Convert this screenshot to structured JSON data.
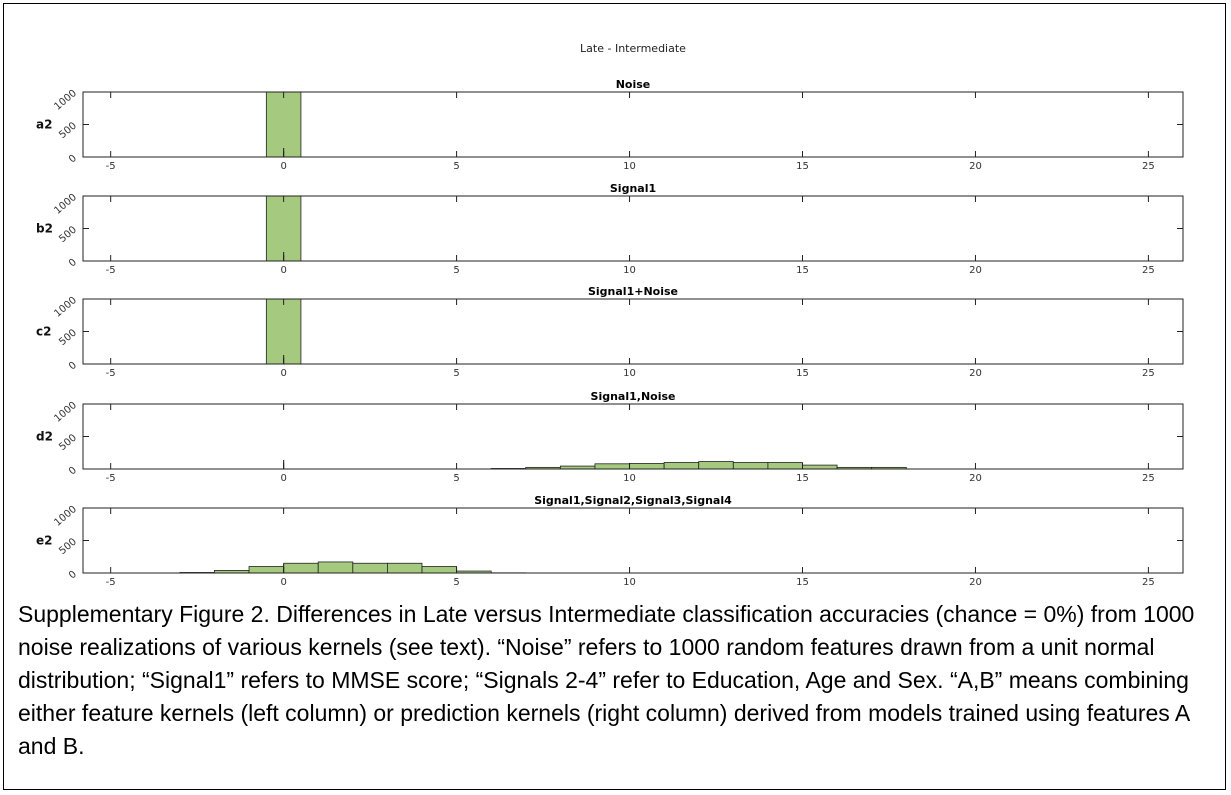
{
  "caption": "Supplementary Figure 2. Differences in Late versus Intermediate classification accuracies (chance = 0%) from 1000 noise realizations of various kernels (see text). “Noise” refers to 1000 random features drawn from a unit normal distribution; “Signal1” refers to MMSE score; “Signals 2-4” refer to Education, Age and Sex. “A,B” means combining either feature kernels (left column) or prediction kernels (right column) derived from models trained using features A and B.",
  "chart_data": {
    "type": "bar",
    "suptitle": "Late - Intermediate",
    "bar_color": "#a5c97f",
    "xlim": [
      -5.8,
      26
    ],
    "ylim": [
      0,
      1000
    ],
    "xticks": [
      -5,
      0,
      5,
      10,
      15,
      20,
      25
    ],
    "xtick_labels": [
      "-5",
      "0",
      "5",
      "10",
      "15",
      "20",
      "25"
    ],
    "yticks": [
      0,
      500,
      1000
    ],
    "ytick_labels": [
      "0",
      "500",
      "1000"
    ],
    "bin_width": 1,
    "panels": [
      {
        "label": "a2",
        "title": "Noise",
        "bin_centers": [
          0
        ],
        "counts": [
          1000
        ]
      },
      {
        "label": "b2",
        "title": "Signal1",
        "bin_centers": [
          0
        ],
        "counts": [
          1000
        ]
      },
      {
        "label": "c2",
        "title": "Signal1+Noise",
        "bin_centers": [
          0
        ],
        "counts": [
          1000
        ]
      },
      {
        "label": "d2",
        "title": "Signal1,Noise",
        "bin_centers": [
          6.5,
          7.5,
          8.5,
          9.5,
          10.5,
          11.5,
          12.5,
          13.5,
          14.5,
          15.5,
          16.5,
          17.5
        ],
        "counts": [
          8,
          25,
          45,
          80,
          85,
          100,
          115,
          100,
          100,
          60,
          25,
          25
        ]
      },
      {
        "label": "e2",
        "title": "Signal1,Signal2,Signal3,Signal4",
        "bin_centers": [
          -2.5,
          -1.5,
          -0.5,
          0.5,
          1.5,
          2.5,
          3.5,
          4.5,
          5.5,
          6.5
        ],
        "counts": [
          8,
          40,
          100,
          150,
          170,
          150,
          150,
          100,
          30,
          3
        ]
      }
    ]
  }
}
